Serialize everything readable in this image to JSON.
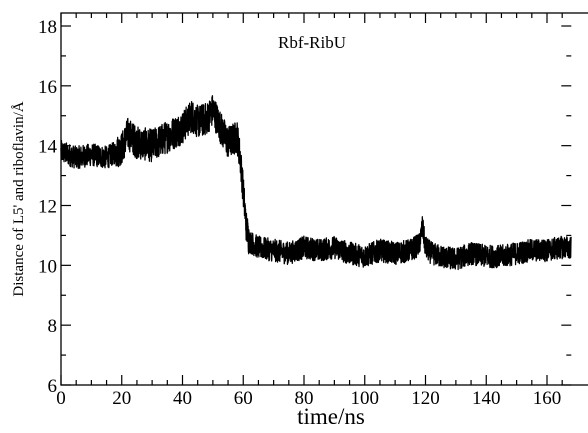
{
  "chart_data": {
    "type": "line",
    "title": "Rbf-RibU",
    "xlabel": "time/ns",
    "ylabel": "Distance of L5' and riboflavin/Å",
    "xlim": [
      0,
      168
    ],
    "ylim": [
      6,
      19
    ],
    "xticks": [
      0,
      20,
      40,
      60,
      80,
      100,
      120,
      140,
      160
    ],
    "yticks": [
      6,
      8,
      10,
      12,
      14,
      16,
      18
    ],
    "grid": false,
    "legend": "none",
    "series": [
      {
        "color": "#000000",
        "x": [
          0,
          5,
          10,
          15,
          20,
          22,
          25,
          30,
          35,
          40,
          43,
          45,
          48,
          50,
          53,
          55,
          58,
          59,
          60,
          61,
          62,
          65,
          70,
          75,
          80,
          85,
          90,
          95,
          100,
          105,
          110,
          115,
          118,
          119,
          120,
          122,
          125,
          130,
          135,
          140,
          145,
          150,
          155,
          160,
          165,
          168
        ],
        "y": [
          13.8,
          13.6,
          13.7,
          13.6,
          13.9,
          14.4,
          14.1,
          14.0,
          14.3,
          14.6,
          15.0,
          14.8,
          14.9,
          15.2,
          14.5,
          14.1,
          14.3,
          13.6,
          12.5,
          11.3,
          10.8,
          10.6,
          10.5,
          10.4,
          10.6,
          10.5,
          10.6,
          10.4,
          10.3,
          10.5,
          10.4,
          10.5,
          10.7,
          11.3,
          10.6,
          10.4,
          10.3,
          10.2,
          10.4,
          10.3,
          10.3,
          10.4,
          10.5,
          10.5,
          10.6,
          10.6
        ]
      }
    ]
  }
}
